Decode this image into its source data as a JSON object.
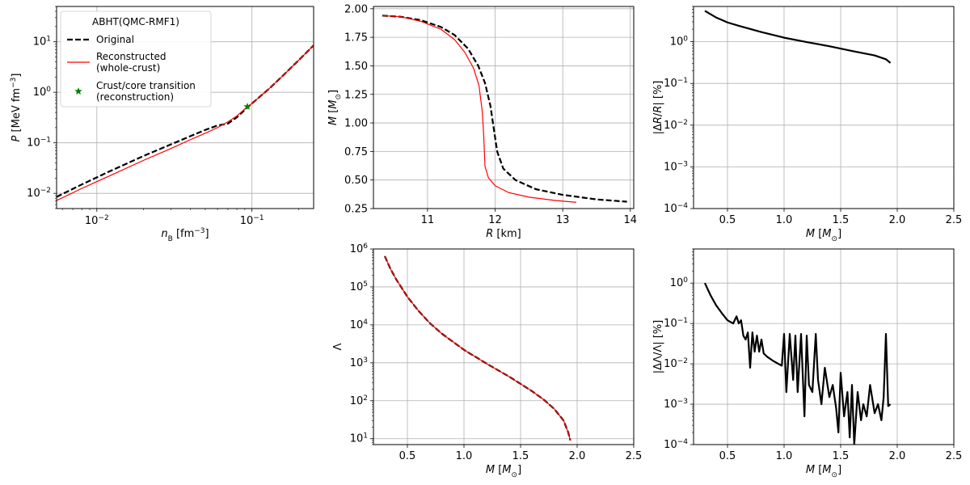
{
  "figure": {
    "colors": {
      "original": "#000000",
      "reconstructed": "#ff0000",
      "transition_star": "#008000",
      "grid": "#b0b0b0"
    }
  },
  "chart_data": [
    {
      "id": "eos",
      "type": "line",
      "xlabel": "n_B [fm^-3]",
      "ylabel": "P [MeV fm^-3]",
      "xscale": "log",
      "yscale": "log",
      "xlim": [
        0.0055,
        0.25
      ],
      "ylim": [
        0.005,
        50
      ],
      "grid": true,
      "xticks": [
        {
          "v": 0.01,
          "b": "10",
          "e": "−2"
        },
        {
          "v": 0.1,
          "b": "10",
          "e": "−1"
        }
      ],
      "yticks": [
        {
          "v": 0.01,
          "b": "10",
          "e": "−2"
        },
        {
          "v": 0.1,
          "b": "10",
          "e": "−1"
        },
        {
          "v": 1,
          "b": "10",
          "e": "0"
        },
        {
          "v": 10,
          "b": "10",
          "e": "1"
        }
      ],
      "legend": {
        "title": "ABHT(QMC-RMF1)",
        "location": "upper-left",
        "entries": [
          {
            "label": "Original",
            "style": "dashed-black"
          },
          {
            "label": "Reconstructed",
            "label2": "(whole-crust)",
            "style": "solid-red"
          },
          {
            "label": "Crust/core transition",
            "label2": "(reconstruction)",
            "style": "green-star"
          }
        ]
      },
      "series": [
        {
          "name": "Original",
          "style": "dashed-black",
          "x": [
            0.0055,
            0.008,
            0.012,
            0.02,
            0.03,
            0.04,
            0.05,
            0.06,
            0.07,
            0.08,
            0.09,
            0.1,
            0.13,
            0.16,
            0.2,
            0.25
          ],
          "y": [
            0.0085,
            0.015,
            0.027,
            0.055,
            0.093,
            0.135,
            0.18,
            0.22,
            0.24,
            0.32,
            0.45,
            0.6,
            1.2,
            2.2,
            4.3,
            8.5
          ]
        },
        {
          "name": "Reconstructed (whole-crust)",
          "style": "solid-red",
          "x": [
            0.0055,
            0.008,
            0.012,
            0.02,
            0.03,
            0.04,
            0.05,
            0.06,
            0.07,
            0.08,
            0.0935,
            0.1,
            0.13,
            0.16,
            0.2,
            0.25
          ],
          "y": [
            0.0072,
            0.0125,
            0.022,
            0.045,
            0.077,
            0.115,
            0.155,
            0.2,
            0.26,
            0.34,
            0.52,
            0.6,
            1.2,
            2.2,
            4.3,
            8.5
          ]
        }
      ],
      "markers": [
        {
          "name": "Crust/core transition (reconstruction)",
          "x": 0.0935,
          "y": 0.52
        }
      ]
    },
    {
      "id": "mass-radius",
      "type": "line",
      "xlabel": "R [km]",
      "ylabel": "M [M⊙]",
      "xlim": [
        10.2,
        14.05
      ],
      "ylim": [
        0.25,
        2.02
      ],
      "grid": true,
      "xticks": [
        11,
        12,
        13,
        14
      ],
      "yticks": [
        0.25,
        0.5,
        0.75,
        1.0,
        1.25,
        1.5,
        1.75,
        2.0
      ],
      "ytick_labels": [
        "0.25",
        "0.50",
        "0.75",
        "1.00",
        "1.25",
        "1.50",
        "1.75",
        "2.00"
      ],
      "series": [
        {
          "name": "Original",
          "style": "dashed-black",
          "x": [
            10.33,
            10.6,
            10.9,
            11.2,
            11.4,
            11.6,
            11.75,
            11.85,
            11.93,
            11.98,
            12.03,
            12.12,
            12.3,
            12.6,
            13.0,
            13.5,
            13.95
          ],
          "y": [
            1.94,
            1.93,
            1.9,
            1.84,
            1.77,
            1.65,
            1.5,
            1.35,
            1.15,
            0.95,
            0.75,
            0.6,
            0.5,
            0.42,
            0.37,
            0.33,
            0.31
          ]
        },
        {
          "name": "Reconstructed",
          "style": "solid-red",
          "x": [
            10.33,
            10.6,
            10.9,
            11.2,
            11.4,
            11.55,
            11.68,
            11.76,
            11.81,
            11.83,
            11.85,
            11.9,
            12.0,
            12.2,
            12.5,
            12.9,
            13.2
          ],
          "y": [
            1.94,
            1.93,
            1.89,
            1.82,
            1.73,
            1.62,
            1.48,
            1.33,
            1.1,
            0.9,
            0.62,
            0.52,
            0.45,
            0.39,
            0.35,
            0.32,
            0.305
          ]
        }
      ]
    },
    {
      "id": "radius-error",
      "type": "line",
      "xlabel": "M [M⊙]",
      "ylabel": "|ΔR/R| [%]",
      "yscale": "log",
      "xlim": [
        0.2,
        2.5
      ],
      "ylim": [
        0.0001,
        7
      ],
      "grid": true,
      "xticks": [
        0.5,
        1.0,
        1.5,
        2.0,
        2.5
      ],
      "yticks": [
        {
          "v": 0.0001,
          "b": "10",
          "e": "−4"
        },
        {
          "v": 0.001,
          "b": "10",
          "e": "−3"
        },
        {
          "v": 0.01,
          "b": "10",
          "e": "−2"
        },
        {
          "v": 0.1,
          "b": "10",
          "e": "−1"
        },
        {
          "v": 1,
          "b": "10",
          "e": "0"
        }
      ],
      "series": [
        {
          "name": "",
          "style": "solid-black",
          "x": [
            0.3,
            0.4,
            0.5,
            0.6,
            0.8,
            1.0,
            1.2,
            1.4,
            1.6,
            1.8,
            1.9,
            1.94
          ],
          "y": [
            5.5,
            3.8,
            2.9,
            2.4,
            1.7,
            1.25,
            0.98,
            0.78,
            0.6,
            0.47,
            0.38,
            0.31
          ]
        }
      ]
    },
    {
      "id": "tidal",
      "type": "line",
      "xlabel": "M [M⊙]",
      "ylabel": "Λ",
      "yscale": "log",
      "xlim": [
        0.2,
        2.5
      ],
      "ylim": [
        7,
        1000000
      ],
      "grid": true,
      "xticks": [
        0.5,
        1.0,
        1.5,
        2.0,
        2.5
      ],
      "yticks": [
        {
          "v": 10,
          "b": "10",
          "e": "1"
        },
        {
          "v": 100,
          "b": "10",
          "e": "2"
        },
        {
          "v": 1000,
          "b": "10",
          "e": "3"
        },
        {
          "v": 10000,
          "b": "10",
          "e": "4"
        },
        {
          "v": 100000,
          "b": "10",
          "e": "5"
        },
        {
          "v": 1000000,
          "b": "10",
          "e": "6"
        }
      ],
      "series": [
        {
          "name": "Original",
          "style": "dashed-black",
          "x": [
            0.3,
            0.35,
            0.4,
            0.5,
            0.6,
            0.7,
            0.8,
            1.0,
            1.2,
            1.4,
            1.6,
            1.7,
            1.8,
            1.88,
            1.92,
            1.94
          ],
          "y": [
            650000,
            300000,
            160000,
            55000,
            23000,
            11000,
            6000,
            2200,
            950,
            430,
            180,
            110,
            60,
            30,
            15,
            9
          ]
        },
        {
          "name": "Reconstructed",
          "style": "solid-red",
          "x": [
            0.3,
            0.35,
            0.4,
            0.5,
            0.6,
            0.7,
            0.8,
            1.0,
            1.2,
            1.4,
            1.6,
            1.7,
            1.8,
            1.88,
            1.92,
            1.94
          ],
          "y": [
            650000,
            300000,
            160000,
            55000,
            23000,
            11000,
            6000,
            2200,
            950,
            430,
            180,
            110,
            60,
            30,
            15,
            9
          ]
        }
      ]
    },
    {
      "id": "tidal-error",
      "type": "line",
      "xlabel": "M [M⊙]",
      "ylabel": "|ΔΛ/Λ| [%]",
      "yscale": "log",
      "xlim": [
        0.2,
        2.5
      ],
      "ylim": [
        0.0001,
        7
      ],
      "grid": true,
      "xticks": [
        0.5,
        1.0,
        1.5,
        2.0,
        2.5
      ],
      "yticks": [
        {
          "v": 0.0001,
          "b": "10",
          "e": "−4"
        },
        {
          "v": 0.001,
          "b": "10",
          "e": "−3"
        },
        {
          "v": 0.01,
          "b": "10",
          "e": "−2"
        },
        {
          "v": 0.1,
          "b": "10",
          "e": "−1"
        },
        {
          "v": 1,
          "b": "10",
          "e": "0"
        }
      ],
      "series": [
        {
          "name": "",
          "style": "solid-black",
          "x": [
            0.3,
            0.35,
            0.4,
            0.45,
            0.5,
            0.55,
            0.58,
            0.6,
            0.62,
            0.64,
            0.66,
            0.68,
            0.7,
            0.72,
            0.74,
            0.76,
            0.78,
            0.8,
            0.82,
            0.85,
            0.9,
            0.95,
            0.98,
            1.0,
            1.02,
            1.05,
            1.08,
            1.1,
            1.12,
            1.15,
            1.18,
            1.2,
            1.22,
            1.25,
            1.28,
            1.3,
            1.33,
            1.36,
            1.4,
            1.43,
            1.46,
            1.48,
            1.5,
            1.53,
            1.56,
            1.58,
            1.6,
            1.62,
            1.65,
            1.68,
            1.7,
            1.73,
            1.76,
            1.8,
            1.83,
            1.86,
            1.88,
            1.9,
            1.92,
            1.94
          ],
          "y": [
            1.0,
            0.5,
            0.28,
            0.18,
            0.12,
            0.1,
            0.15,
            0.1,
            0.12,
            0.05,
            0.04,
            0.06,
            0.008,
            0.06,
            0.02,
            0.05,
            0.02,
            0.04,
            0.018,
            0.015,
            0.012,
            0.01,
            0.009,
            0.055,
            0.002,
            0.055,
            0.004,
            0.05,
            0.002,
            0.055,
            0.0005,
            0.05,
            0.003,
            0.002,
            0.055,
            0.004,
            0.001,
            0.008,
            0.0015,
            0.003,
            0.0008,
            0.0002,
            0.006,
            0.0005,
            0.002,
            0.00015,
            0.003,
            0.0001,
            0.002,
            0.0004,
            0.001,
            0.0005,
            0.003,
            0.0006,
            0.001,
            0.0004,
            0.0015,
            0.055,
            0.0009,
            0.001
          ]
        }
      ]
    }
  ]
}
